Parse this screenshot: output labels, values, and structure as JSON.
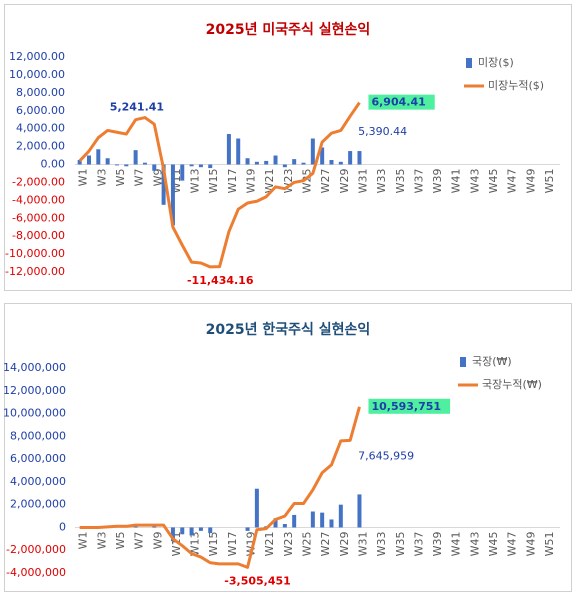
{
  "chart_data": [
    {
      "type": "bar_line",
      "title": "2025년 미국주식 실현손익",
      "title_color": "#c00000",
      "legend": "upper right",
      "categories": [
        "W1",
        null,
        "W3",
        null,
        "W5",
        null,
        "W7",
        null,
        "W9",
        null,
        "W11",
        null,
        "W13",
        null,
        "W15",
        null,
        "W17",
        null,
        "W19",
        null,
        "W21",
        null,
        "W23",
        null,
        "W25",
        null,
        "W27",
        null,
        "W29",
        null,
        "W31",
        null,
        "W33",
        null,
        "W35",
        null,
        "W37",
        null,
        "W39",
        null,
        "W41",
        null,
        "W43",
        null,
        "W45",
        null,
        "W47",
        null,
        "W49",
        null,
        "W51",
        null
      ],
      "ylim": [
        -12000,
        12000
      ],
      "yticks": [
        {
          "value": -12000,
          "label": "-12,000.00"
        },
        {
          "value": -10000,
          "label": "-10,000.00"
        },
        {
          "value": -8000,
          "label": "-8,000.00"
        },
        {
          "value": -6000,
          "label": "-6,000.00"
        },
        {
          "value": -4000,
          "label": "-4,000.00"
        },
        {
          "value": -2000,
          "label": "-2,000.00"
        },
        {
          "value": 0,
          "label": "0.00"
        },
        {
          "value": 2000,
          "label": "2,000.00"
        },
        {
          "value": 4000,
          "label": "4,000.00"
        },
        {
          "value": 6000,
          "label": "6,000.00"
        },
        {
          "value": 8000,
          "label": "8,000.00"
        },
        {
          "value": 10000,
          "label": "10,000.00"
        },
        {
          "value": 12000,
          "label": "12,000.00"
        }
      ],
      "series": [
        {
          "name": "미장($)",
          "type": "bar",
          "color": "#4472c4",
          "values": [
            500,
            1000,
            1700,
            700,
            -100,
            -200,
            1600,
            200,
            -700,
            -4500,
            -6800,
            -1800,
            -200,
            -300,
            -400,
            0,
            3400,
            2900,
            700,
            300,
            400,
            1000,
            -300,
            600,
            200,
            2900,
            1900,
            500,
            300,
            1500,
            1500,
            null,
            null,
            null,
            null,
            null,
            null,
            null,
            null,
            null,
            null,
            null,
            null,
            null,
            null,
            null,
            null,
            null,
            null,
            null,
            null,
            null
          ]
        },
        {
          "name": "미장누적($)",
          "type": "line",
          "color": "#ed7d31",
          "values": [
            400,
            1500,
            3000,
            3800,
            3600,
            3400,
            5000,
            5241.41,
            4500,
            -500,
            -7000,
            -9000,
            -10900,
            -11000,
            -11434.16,
            -11400,
            -7500,
            -5000,
            -4300,
            -4100,
            -3600,
            -2500,
            -2700,
            -2000,
            -1800,
            -1000,
            2500,
            3500,
            3800,
            5390.44,
            6904.41,
            null,
            null,
            null,
            null,
            null,
            null,
            null,
            null,
            null,
            null,
            null,
            null,
            null,
            null,
            null,
            null,
            null,
            null,
            null,
            null,
            null
          ],
          "value_labels": [
            null,
            null,
            null,
            null,
            null,
            null,
            null,
            "5,241.41",
            null,
            null,
            null,
            null,
            null,
            null,
            "-11,434.16",
            null,
            null,
            null,
            null,
            null,
            null,
            null,
            null,
            null,
            null,
            null,
            null,
            null,
            null,
            "5,390.44",
            "6,904.41",
            null,
            null,
            null,
            null,
            null,
            null,
            null,
            null,
            null,
            null,
            null,
            null,
            null,
            null,
            null,
            null,
            null,
            null,
            null,
            null,
            null
          ]
        }
      ]
    },
    {
      "type": "bar_line",
      "title": "2025년 한국주식 실현손익",
      "title_color": "#1f4e79",
      "legend": "upper right",
      "categories": [
        "W1",
        null,
        "W3",
        null,
        "W5",
        null,
        "W7",
        null,
        "W9",
        null,
        "W11",
        null,
        "W13",
        null,
        "W15",
        null,
        "W17",
        null,
        "W19",
        null,
        "W21",
        null,
        "W23",
        null,
        "W25",
        null,
        "W27",
        null,
        "W29",
        null,
        "W31",
        null,
        "W33",
        null,
        "W35",
        null,
        "W37",
        null,
        "W39",
        null,
        "W41",
        null,
        "W43",
        null,
        "W45",
        null,
        "W47",
        null,
        "W49",
        null,
        "W51",
        null
      ],
      "ylim": [
        -4000000,
        14000000
      ],
      "yticks": [
        {
          "value": -4000000,
          "label": "-4,000,000"
        },
        {
          "value": -2000000,
          "label": "-2,000,000"
        },
        0,
        {
          "value": 2000000,
          "label": "2,000,000"
        },
        {
          "value": 4000000,
          "label": "4,000,000"
        },
        {
          "value": 6000000,
          "label": "6,000,000"
        },
        {
          "value": 8000000,
          "label": "8,000,000"
        },
        {
          "value": 10000000,
          "label": "10,000,000"
        },
        {
          "value": 12000000,
          "label": "12,000,000"
        },
        {
          "value": 14000000,
          "label": "14,000,000"
        }
      ],
      "series": [
        {
          "name": "국장(₩)",
          "type": "bar",
          "color": "#4472c4",
          "values": [
            0,
            0,
            0,
            50000,
            100000,
            0,
            100000,
            0,
            200000,
            0,
            -1200000,
            -600000,
            -700000,
            -300000,
            -500000,
            0,
            0,
            0,
            -300000,
            3400000,
            100000,
            800000,
            300000,
            1100000,
            0,
            1400000,
            1300000,
            700000,
            2000000,
            0,
            2900000,
            null,
            null,
            null,
            null,
            null,
            null,
            null,
            null,
            null,
            null,
            null,
            null,
            null,
            null,
            null,
            null,
            null,
            null,
            null,
            null,
            null
          ]
        },
        {
          "name": "국장누적(₩)",
          "type": "line",
          "color": "#ed7d31",
          "values": [
            0,
            0,
            0,
            50000,
            100000,
            100000,
            200000,
            200000,
            200000,
            200000,
            -1000000,
            -1600000,
            -2300000,
            -2600000,
            -3100000,
            -3200000,
            -3200000,
            -3200000,
            -3505451,
            -200000,
            -100000,
            700000,
            1000000,
            2100000,
            2100000,
            3300000,
            4800000,
            5500000,
            7600000,
            7645959,
            10593751,
            null,
            null,
            null,
            null,
            null,
            null,
            null,
            null,
            null,
            null,
            null,
            null,
            null,
            null,
            null,
            null,
            null,
            null,
            null,
            null,
            null
          ],
          "value_labels": [
            null,
            null,
            null,
            null,
            null,
            null,
            null,
            null,
            null,
            null,
            null,
            null,
            null,
            null,
            null,
            null,
            null,
            null,
            "-3,505,451",
            null,
            null,
            null,
            null,
            null,
            null,
            null,
            null,
            null,
            null,
            "7,645,959",
            "10,593,751",
            null,
            null,
            null,
            null,
            null,
            null,
            null,
            null,
            null,
            null,
            null,
            null,
            null,
            null,
            null,
            null,
            null,
            null,
            null,
            null,
            null
          ]
        }
      ]
    }
  ]
}
